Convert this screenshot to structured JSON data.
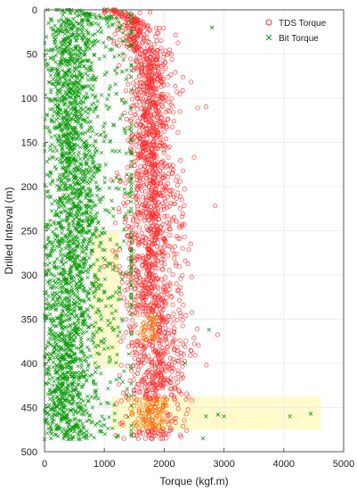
{
  "chart_data": {
    "type": "scatter",
    "xlabel": "Torque (kgf.m)",
    "ylabel": "Drilled Interval (m)",
    "xlim": [
      0,
      5000
    ],
    "ylim": [
      0,
      500
    ],
    "y_reversed": true,
    "grid": true,
    "legend_position": "top-right",
    "xticks": [
      "0",
      "1000",
      "2000",
      "3000",
      "4000",
      "5000"
    ],
    "yticks": [
      "0",
      "50",
      "100",
      "150",
      "200",
      "250",
      "300",
      "350",
      "400",
      "450",
      "500"
    ],
    "highlight_regions": [
      {
        "x": [
          800,
          1250
        ],
        "y": [
          250,
          405
        ],
        "color": "#fff9b8"
      },
      {
        "x": [
          1120,
          4620
        ],
        "y": [
          438,
          475
        ],
        "color": "#fff9b8"
      }
    ],
    "series": [
      {
        "name": "TDS Torque",
        "marker": "circle",
        "color": "#ff2a2a",
        "points": [
          [
            1000,
            0
          ],
          [
            1200,
            2
          ],
          [
            1350,
            3
          ],
          [
            1450,
            5
          ],
          [
            1500,
            8
          ],
          [
            1550,
            11
          ],
          [
            1600,
            15
          ],
          [
            1650,
            20
          ],
          [
            1600,
            25
          ],
          [
            1550,
            30
          ],
          [
            1500,
            35
          ],
          [
            1450,
            40
          ],
          [
            1500,
            45
          ],
          [
            1600,
            50
          ],
          [
            1700,
            55
          ],
          [
            1800,
            60
          ],
          [
            1850,
            65
          ],
          [
            1750,
            70
          ],
          [
            1700,
            75
          ],
          [
            1750,
            80
          ],
          [
            1800,
            85
          ],
          [
            1850,
            90
          ],
          [
            1800,
            95
          ],
          [
            1750,
            100
          ],
          [
            1800,
            105
          ],
          [
            1750,
            110
          ],
          [
            1700,
            115
          ],
          [
            1650,
            120
          ],
          [
            1700,
            125
          ],
          [
            1750,
            130
          ],
          [
            1700,
            135
          ],
          [
            1650,
            140
          ],
          [
            1600,
            145
          ],
          [
            1650,
            150
          ],
          [
            1700,
            155
          ],
          [
            1650,
            160
          ],
          [
            1600,
            165
          ],
          [
            1700,
            170
          ],
          [
            1800,
            175
          ],
          [
            1850,
            180
          ],
          [
            1900,
            185
          ],
          [
            1850,
            190
          ],
          [
            1800,
            195
          ],
          [
            1750,
            200
          ],
          [
            1800,
            205
          ],
          [
            1750,
            210
          ],
          [
            1700,
            215
          ],
          [
            1650,
            220
          ],
          [
            1700,
            225
          ],
          [
            1750,
            230
          ],
          [
            1800,
            235
          ],
          [
            1850,
            240
          ],
          [
            1800,
            245
          ],
          [
            1750,
            250
          ],
          [
            1800,
            255
          ],
          [
            1850,
            260
          ],
          [
            1800,
            265
          ],
          [
            1750,
            270
          ],
          [
            1800,
            275
          ],
          [
            1750,
            280
          ],
          [
            1700,
            285
          ],
          [
            1750,
            290
          ],
          [
            1800,
            295
          ],
          [
            1750,
            300
          ],
          [
            1700,
            305
          ],
          [
            1750,
            310
          ],
          [
            1800,
            315
          ],
          [
            1750,
            320
          ],
          [
            1700,
            325
          ],
          [
            1650,
            330
          ],
          [
            1700,
            335
          ],
          [
            1800,
            340
          ],
          [
            1850,
            345
          ],
          [
            1800,
            350
          ],
          [
            1750,
            355
          ],
          [
            1800,
            360
          ],
          [
            1850,
            365
          ],
          [
            1800,
            370
          ],
          [
            1750,
            375
          ],
          [
            1800,
            380
          ],
          [
            1850,
            385
          ],
          [
            1900,
            390
          ],
          [
            1850,
            395
          ],
          [
            1800,
            400
          ],
          [
            1850,
            405
          ],
          [
            1800,
            410
          ],
          [
            1750,
            415
          ],
          [
            1800,
            420
          ],
          [
            1850,
            425
          ],
          [
            1750,
            430
          ],
          [
            1700,
            435
          ],
          [
            1750,
            440
          ],
          [
            1800,
            445
          ],
          [
            1850,
            450
          ],
          [
            1800,
            455
          ],
          [
            1750,
            460
          ],
          [
            1800,
            465
          ],
          [
            1850,
            470
          ],
          [
            1800,
            475
          ],
          [
            1750,
            480
          ],
          [
            1800,
            485
          ]
        ]
      },
      {
        "name": "Bit Torque",
        "marker": "x",
        "color": "#0c9a0c",
        "points": [
          [
            50,
            0
          ],
          [
            300,
            2
          ],
          [
            700,
            4
          ],
          [
            1100,
            8
          ],
          [
            1050,
            15
          ],
          [
            950,
            25
          ],
          [
            850,
            35
          ],
          [
            700,
            45
          ],
          [
            600,
            60
          ],
          [
            500,
            75
          ],
          [
            450,
            90
          ],
          [
            400,
            110
          ],
          [
            420,
            130
          ],
          [
            450,
            150
          ],
          [
            480,
            170
          ],
          [
            520,
            190
          ],
          [
            600,
            210
          ],
          [
            700,
            230
          ],
          [
            850,
            250
          ],
          [
            700,
            270
          ],
          [
            450,
            290
          ],
          [
            350,
            310
          ],
          [
            300,
            330
          ],
          [
            280,
            350
          ],
          [
            250,
            370
          ],
          [
            220,
            390
          ],
          [
            200,
            410
          ],
          [
            180,
            430
          ],
          [
            150,
            445
          ],
          [
            130,
            460
          ],
          [
            120,
            475
          ],
          [
            110,
            485
          ],
          [
            1200,
            10
          ],
          [
            1250,
            20
          ],
          [
            1100,
            45
          ],
          [
            1300,
            70
          ],
          [
            1200,
            95
          ],
          [
            1150,
            130
          ],
          [
            1250,
            160
          ],
          [
            1200,
            190
          ],
          [
            1150,
            225
          ],
          [
            1100,
            260
          ],
          [
            1050,
            290
          ],
          [
            1000,
            320
          ],
          [
            950,
            350
          ],
          [
            900,
            380
          ],
          [
            850,
            410
          ],
          [
            900,
            440
          ],
          [
            1000,
            470
          ],
          [
            2700,
            460
          ],
          [
            2900,
            458
          ],
          [
            3000,
            460
          ],
          [
            4100,
            460
          ],
          [
            4450,
            457
          ],
          [
            2800,
            20
          ],
          [
            2650,
            485
          ],
          [
            2750,
            362
          ],
          [
            2350,
            400
          ]
        ]
      }
    ]
  }
}
